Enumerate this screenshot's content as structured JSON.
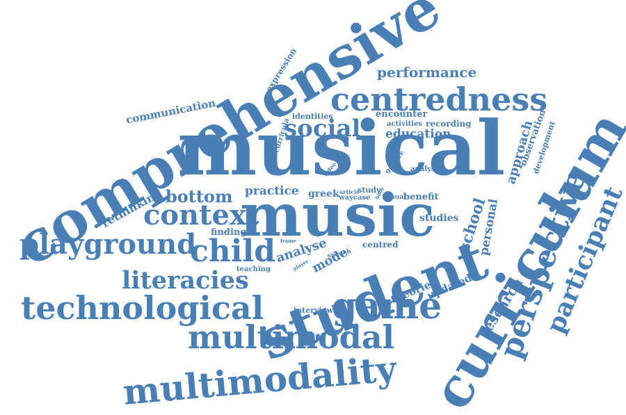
{
  "cloud": {
    "color": "#4a7fb5",
    "words": [
      {
        "id": "comprehensive",
        "text": "comprehensive"
      },
      {
        "id": "musical",
        "text": "musical"
      },
      {
        "id": "music",
        "text": "music"
      },
      {
        "id": "student",
        "text": "student"
      },
      {
        "id": "curriculum",
        "text": "curriculum"
      },
      {
        "id": "centredness",
        "text": "centredness"
      },
      {
        "id": "performance",
        "text": "performance"
      },
      {
        "id": "social",
        "text": "social"
      },
      {
        "id": "education",
        "text": "education"
      },
      {
        "id": "encounter",
        "text": "encounter"
      },
      {
        "id": "identities",
        "text": "identities"
      },
      {
        "id": "activities",
        "text": "activities"
      },
      {
        "id": "recording",
        "text": "recording"
      },
      {
        "id": "communication",
        "text": "communication"
      },
      {
        "id": "expression",
        "text": "expression"
      },
      {
        "id": "curricula",
        "text": "curricula"
      },
      {
        "id": "gesture",
        "text": "gesture"
      },
      {
        "id": "video",
        "text": "video"
      },
      {
        "id": "analysis",
        "text": "analysis"
      },
      {
        "id": "approach",
        "text": "approach"
      },
      {
        "id": "observation",
        "text": "observation"
      },
      {
        "id": "development",
        "text": "development"
      },
      {
        "id": "perspective",
        "text": "perspective"
      },
      {
        "id": "participant",
        "text": "participant"
      },
      {
        "id": "rethinking",
        "text": "rethinking"
      },
      {
        "id": "bottom",
        "text": "bottom"
      },
      {
        "id": "practice",
        "text": "practice"
      },
      {
        "id": "greek",
        "text": "greek"
      },
      {
        "id": "article",
        "text": "article"
      },
      {
        "id": "study",
        "text": "study"
      },
      {
        "id": "waycase",
        "text": "waycase"
      },
      {
        "id": "body",
        "text": "body"
      },
      {
        "id": "visual",
        "text": "visual"
      },
      {
        "id": "benefit",
        "text": "benefit"
      },
      {
        "id": "context",
        "text": "context"
      },
      {
        "id": "finding",
        "text": "finding"
      },
      {
        "id": "data",
        "text": "data"
      },
      {
        "id": "studies",
        "text": "studies"
      },
      {
        "id": "school",
        "text": "school"
      },
      {
        "id": "personal",
        "text": "personal"
      },
      {
        "id": "playground",
        "text": "playground"
      },
      {
        "id": "child",
        "text": "child"
      },
      {
        "id": "analyse",
        "text": "analyse"
      },
      {
        "id": "frame",
        "text": "frame"
      },
      {
        "id": "player",
        "text": "player"
      },
      {
        "id": "mode",
        "text": "mode"
      },
      {
        "id": "speech",
        "text": "speech"
      },
      {
        "id": "centred",
        "text": "centred"
      },
      {
        "id": "teaching",
        "text": "teaching"
      },
      {
        "id": "literacies",
        "text": "literacies"
      },
      {
        "id": "theories",
        "text": "theories"
      },
      {
        "id": "updated",
        "text": "updated"
      },
      {
        "id": "research",
        "text": "research"
      },
      {
        "id": "technological",
        "text": "technological"
      },
      {
        "id": "interview",
        "text": "interview"
      },
      {
        "id": "game",
        "text": "game"
      },
      {
        "id": "multimodal",
        "text": "multimodal"
      },
      {
        "id": "multimodality",
        "text": "multimodality"
      }
    ]
  }
}
